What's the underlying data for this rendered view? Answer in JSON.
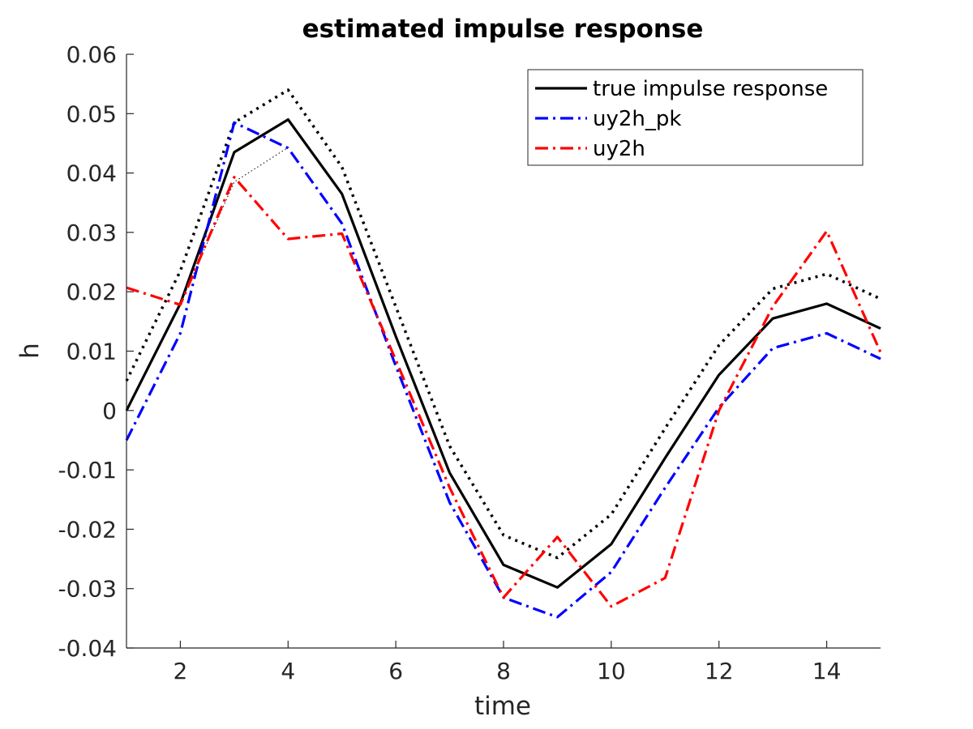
{
  "chart_data": {
    "type": "line",
    "title": "estimated impulse response",
    "xlabel": "time",
    "ylabel": "h",
    "xlim": [
      1,
      15
    ],
    "ylim": [
      -0.04,
      0.06
    ],
    "xticks": [
      2,
      4,
      6,
      8,
      10,
      12,
      14
    ],
    "yticks": [
      -0.04,
      -0.03,
      -0.02,
      -0.01,
      0,
      0.01,
      0.02,
      0.03,
      0.04,
      0.05,
      0.06
    ],
    "ytick_labels": [
      "-0.04",
      "-0.03",
      "-0.02",
      "-0.01",
      "0",
      "0.01",
      "0.02",
      "0.03",
      "0.04",
      "0.05",
      "0.06"
    ],
    "grid": false,
    "legend_position": "top-right",
    "x": [
      1,
      2,
      3,
      4,
      5,
      6,
      7,
      8,
      9,
      10,
      11,
      12,
      13,
      14,
      15
    ],
    "series": [
      {
        "name": "true impulse response",
        "color": "#000000",
        "style": "solid",
        "in_legend": true,
        "values": [
          0.0,
          0.018,
          0.0435,
          0.049,
          0.0365,
          0.0125,
          -0.0105,
          -0.026,
          -0.0298,
          -0.0225,
          -0.008,
          0.006,
          0.0155,
          0.018,
          0.0138
        ]
      },
      {
        "name": "uy2h_pk",
        "color": "#0000ff",
        "style": "dashdot",
        "in_legend": true,
        "values": [
          -0.005,
          0.013,
          0.0485,
          0.0442,
          0.0315,
          0.0075,
          -0.0155,
          -0.0315,
          -0.0348,
          -0.0272,
          -0.013,
          0.0005,
          0.0105,
          0.013,
          0.0087
        ]
      },
      {
        "name": "uy2h",
        "color": "#ff0000",
        "style": "dashdot",
        "in_legend": true,
        "values": [
          0.0207,
          0.0178,
          0.0393,
          0.0289,
          0.0298,
          0.0085,
          -0.013,
          -0.0315,
          -0.0213,
          -0.033,
          -0.0282,
          0.0,
          0.0175,
          0.0302,
          0.0098
        ]
      },
      {
        "color": "#000000",
        "style": "dotted-thick",
        "in_legend": false,
        "values": [
          0.005,
          0.0235,
          0.0485,
          0.054,
          0.041,
          0.0175,
          -0.006,
          -0.021,
          -0.0248,
          -0.0175,
          -0.003,
          0.011,
          0.0205,
          0.023,
          0.0188
        ]
      },
      {
        "color": "#000000",
        "style": "dotted-thin",
        "in_legend": false,
        "values": [
          null,
          0.018,
          0.0385,
          0.0443,
          null,
          null,
          null,
          null,
          null,
          null,
          null,
          null,
          null,
          null,
          null
        ]
      }
    ]
  }
}
